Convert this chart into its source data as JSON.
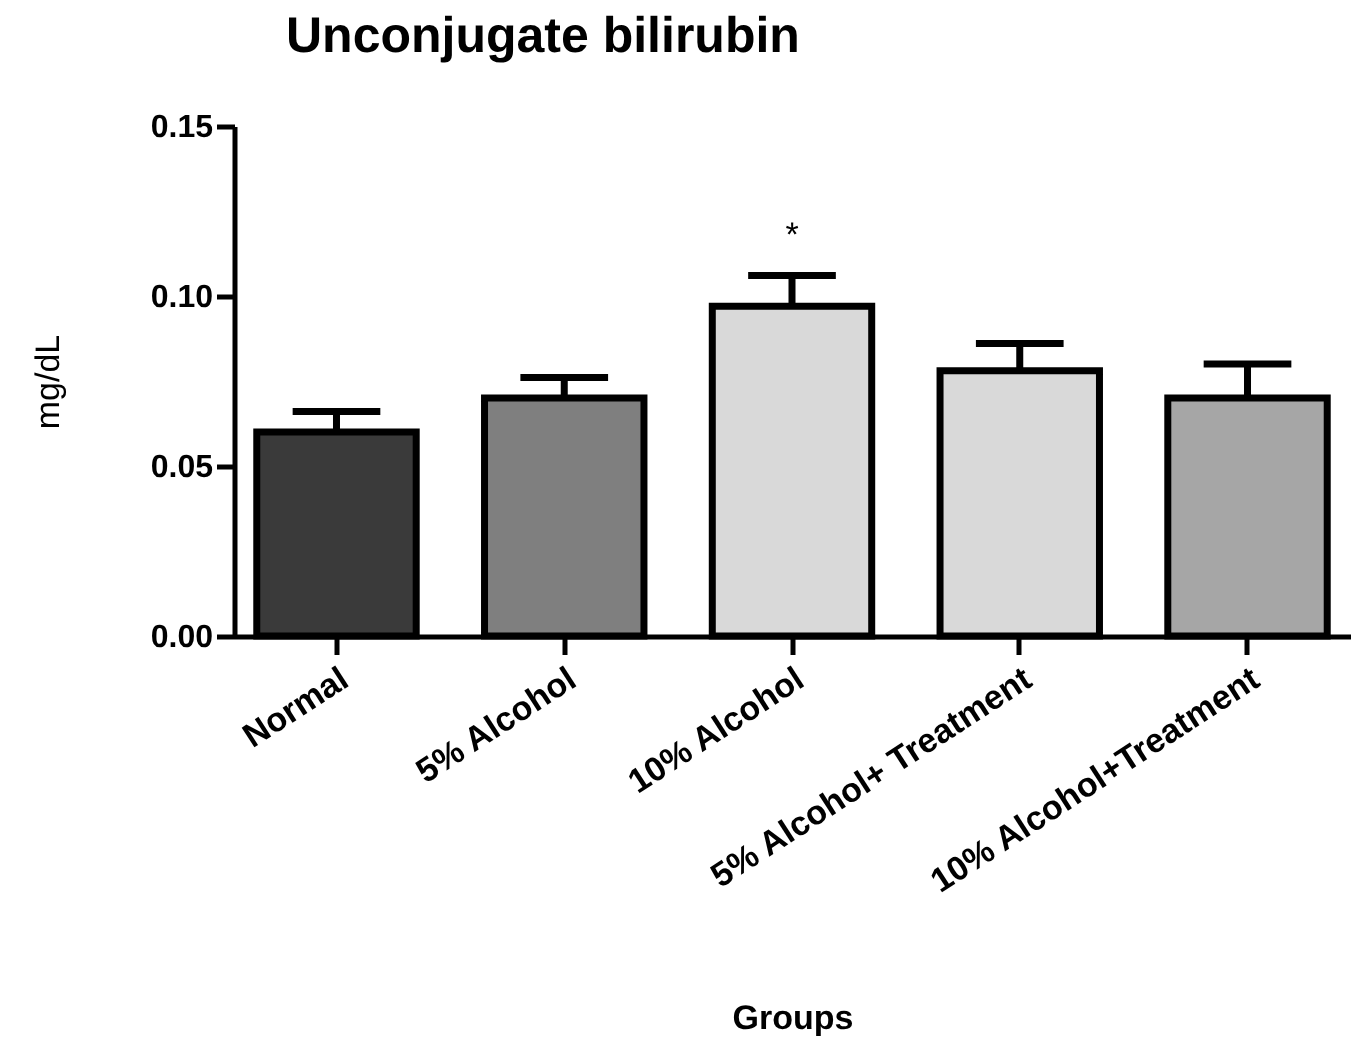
{
  "chart_data": {
    "type": "bar",
    "title": "Unconjugate bilirubin",
    "xlabel": "Groups",
    "ylabel": "mg/dL",
    "categories": [
      "Normal",
      "5% Alcohol",
      "10% Alcohol",
      "5% Alcohol+ Treatment",
      "10% Alcohol+Treatment"
    ],
    "values": [
      0.06,
      0.07,
      0.097,
      0.078,
      0.07
    ],
    "errors": [
      [
        0.06,
        0.066
      ],
      [
        0.07,
        0.076
      ],
      [
        0.097,
        0.106
      ],
      [
        0.078,
        0.086
      ],
      [
        0.07,
        0.08
      ]
    ],
    "colors": [
      "#3a3a3a",
      "#7f7f7f",
      "#d9d9d9",
      "#d9d9d9",
      "#a6a6a6"
    ],
    "ylim": [
      0,
      0.15
    ],
    "yticks": [
      {
        "value": 0,
        "label": "0.00"
      },
      0.05,
      {
        "value": 0.1,
        "label": "0.10"
      },
      {
        "value": 0.15,
        "label": "0.15"
      }
    ],
    "grid": false,
    "annotations": [
      {
        "text": "*",
        "x": "10% Alcohol",
        "y": 0.097
      }
    ]
  }
}
